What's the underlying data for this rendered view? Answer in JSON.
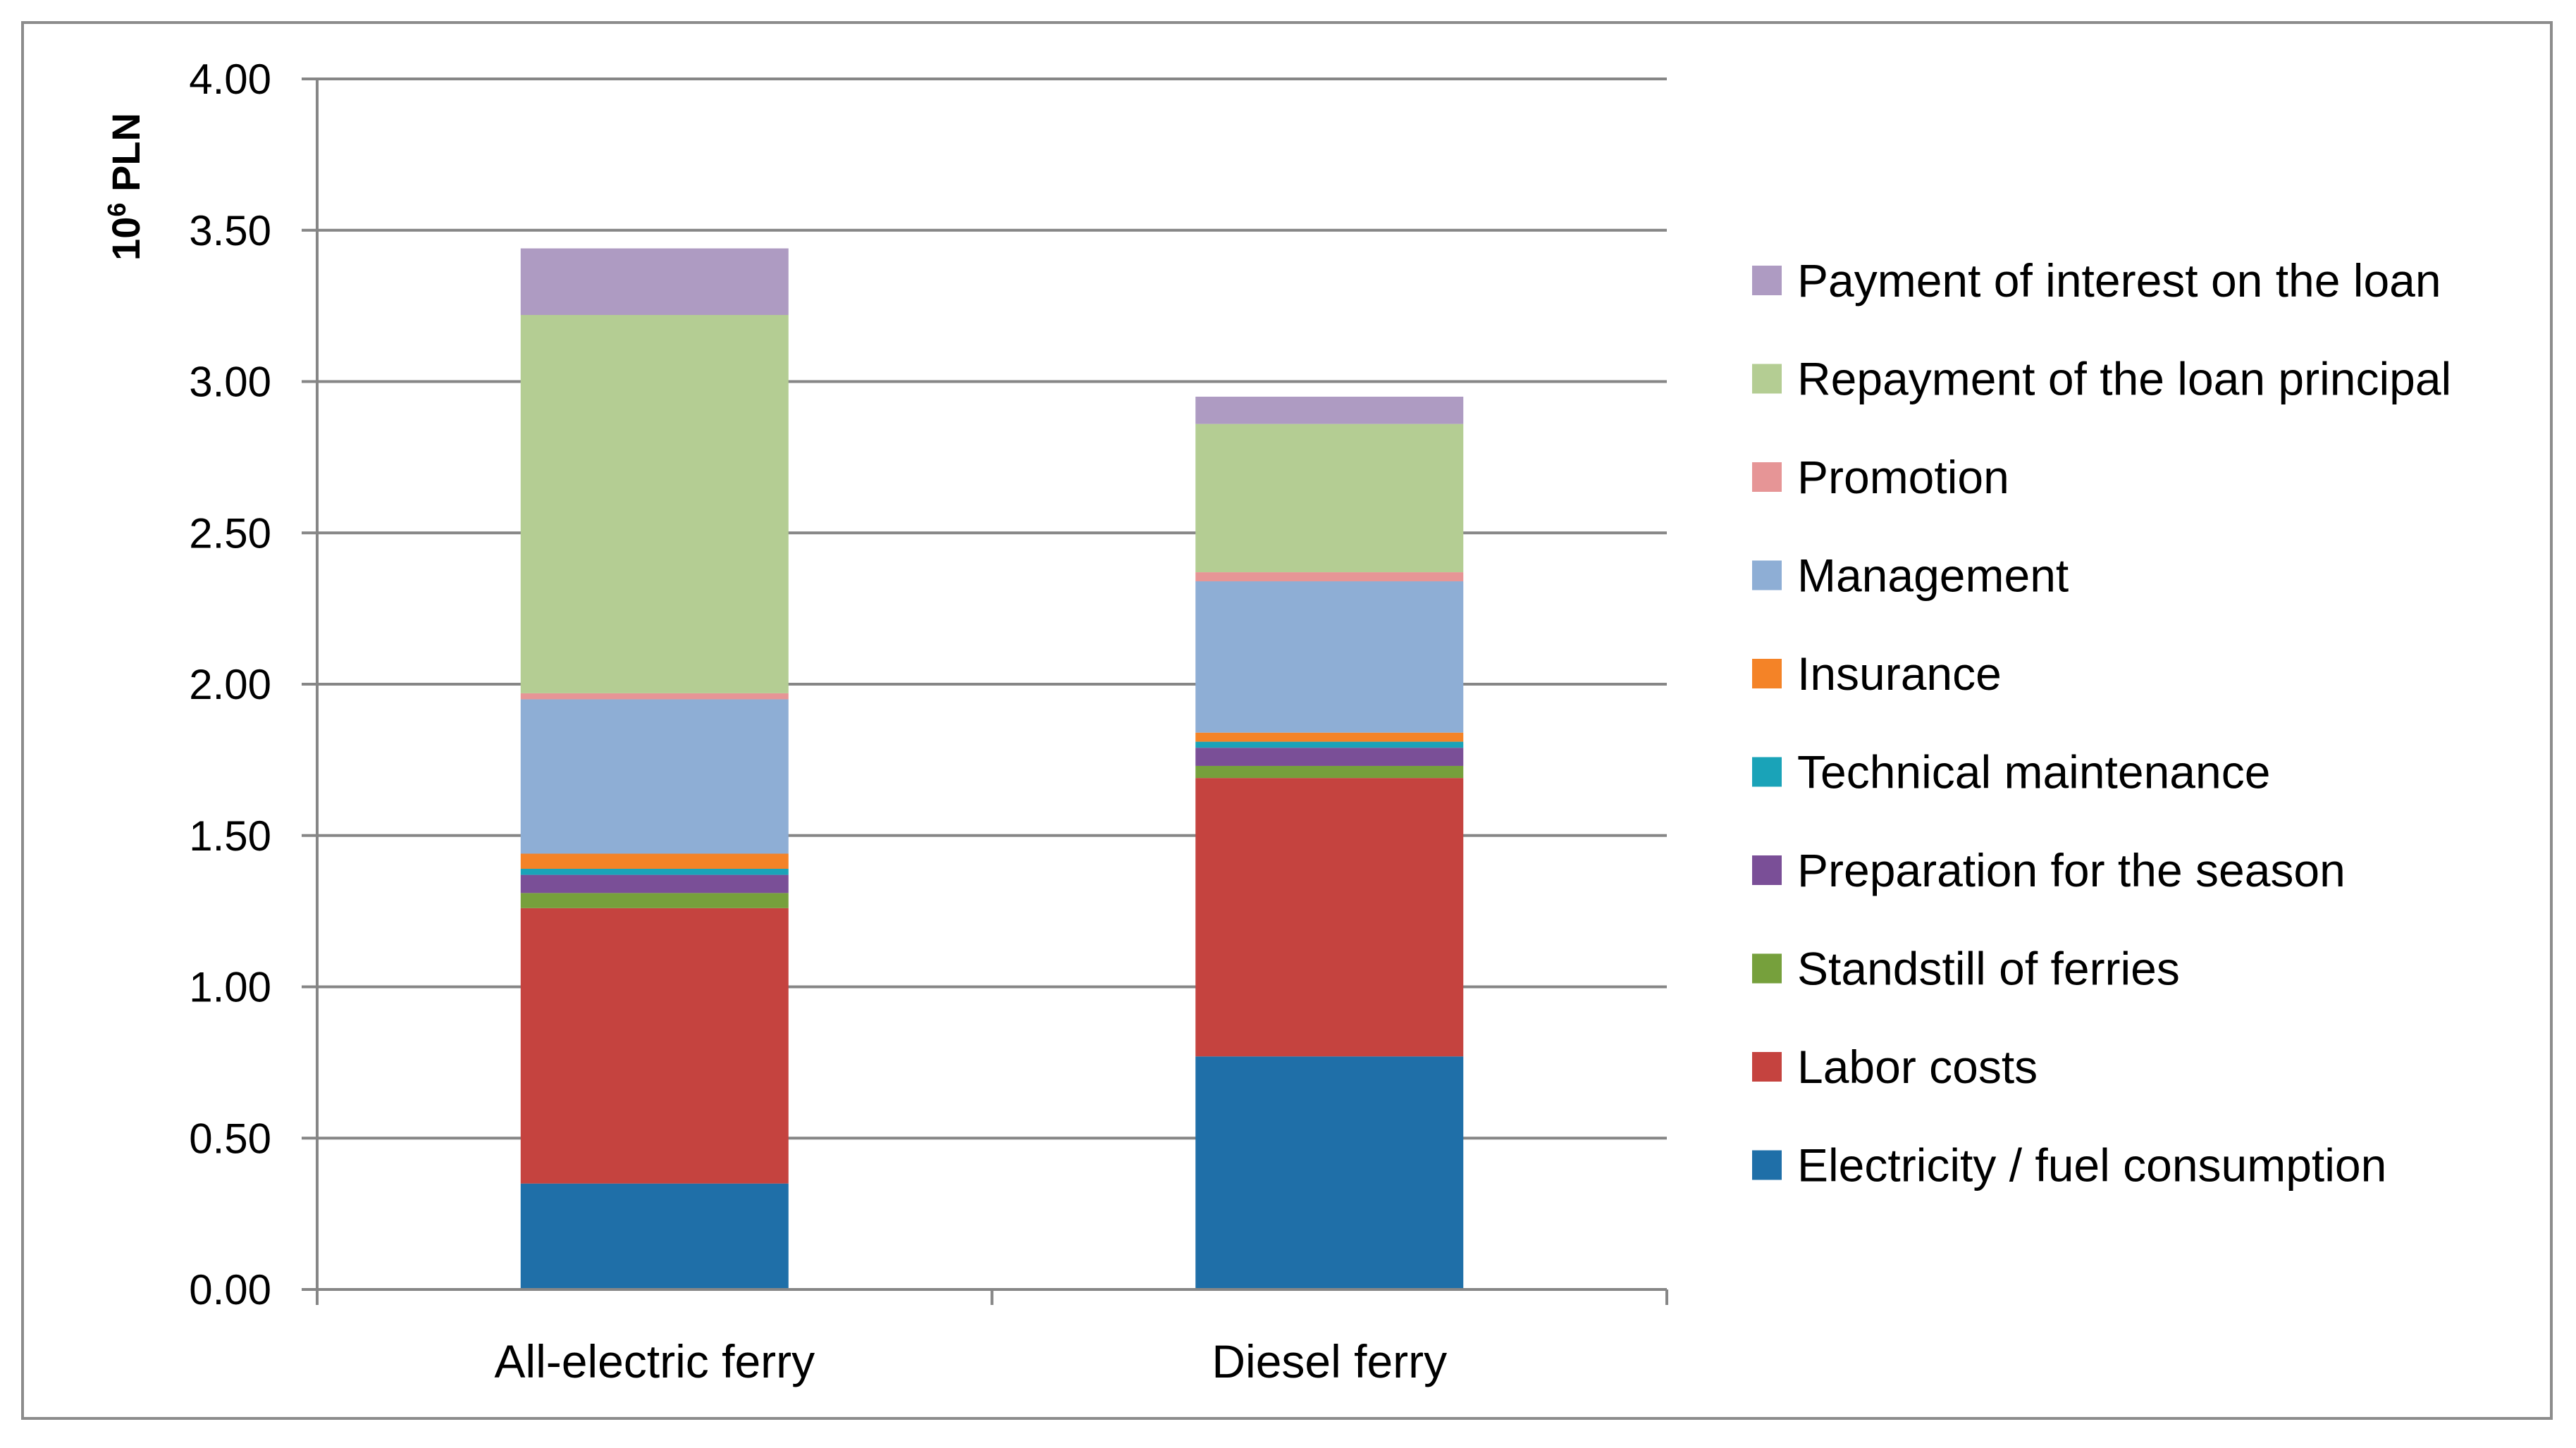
{
  "chart_data": {
    "type": "bar",
    "stacked": true,
    "ylabel_base": "10",
    "ylabel_exp": "6",
    "ylabel_unit": "PLN",
    "ylim": [
      0,
      4
    ],
    "y_ticks": [
      "0.00",
      "0.50",
      "1.00",
      "1.50",
      "2.00",
      "2.50",
      "3.00",
      "3.50",
      "4.00"
    ],
    "grid": true,
    "legend_position": "right",
    "categories": [
      "All-electric ferry",
      "Diesel ferry"
    ],
    "series": [
      {
        "name": "Electricity / fuel consumption",
        "color": "#1f6fa8",
        "values": [
          0.35,
          0.77
        ]
      },
      {
        "name": "Labor costs",
        "color": "#c5433f",
        "values": [
          0.91,
          0.92
        ]
      },
      {
        "name": "Standstill of ferries",
        "color": "#76a03c",
        "values": [
          0.05,
          0.04
        ]
      },
      {
        "name": "Preparation for the season",
        "color": "#7a4f97",
        "values": [
          0.06,
          0.06
        ]
      },
      {
        "name": "Technical maintenance",
        "color": "#1aa3b8",
        "values": [
          0.02,
          0.02
        ]
      },
      {
        "name": "Insurance",
        "color": "#f48327",
        "values": [
          0.05,
          0.03
        ]
      },
      {
        "name": "Management",
        "color": "#8eaed5",
        "values": [
          0.51,
          0.5
        ]
      },
      {
        "name": "Promotion",
        "color": "#e69596",
        "values": [
          0.02,
          0.03
        ]
      },
      {
        "name": "Repayment of the loan principal",
        "color": "#b4cd93",
        "values": [
          1.25,
          0.49
        ]
      },
      {
        "name": "Payment of interest on the loan",
        "color": "#ae9bc2",
        "values": [
          0.22,
          0.09
        ]
      }
    ]
  }
}
